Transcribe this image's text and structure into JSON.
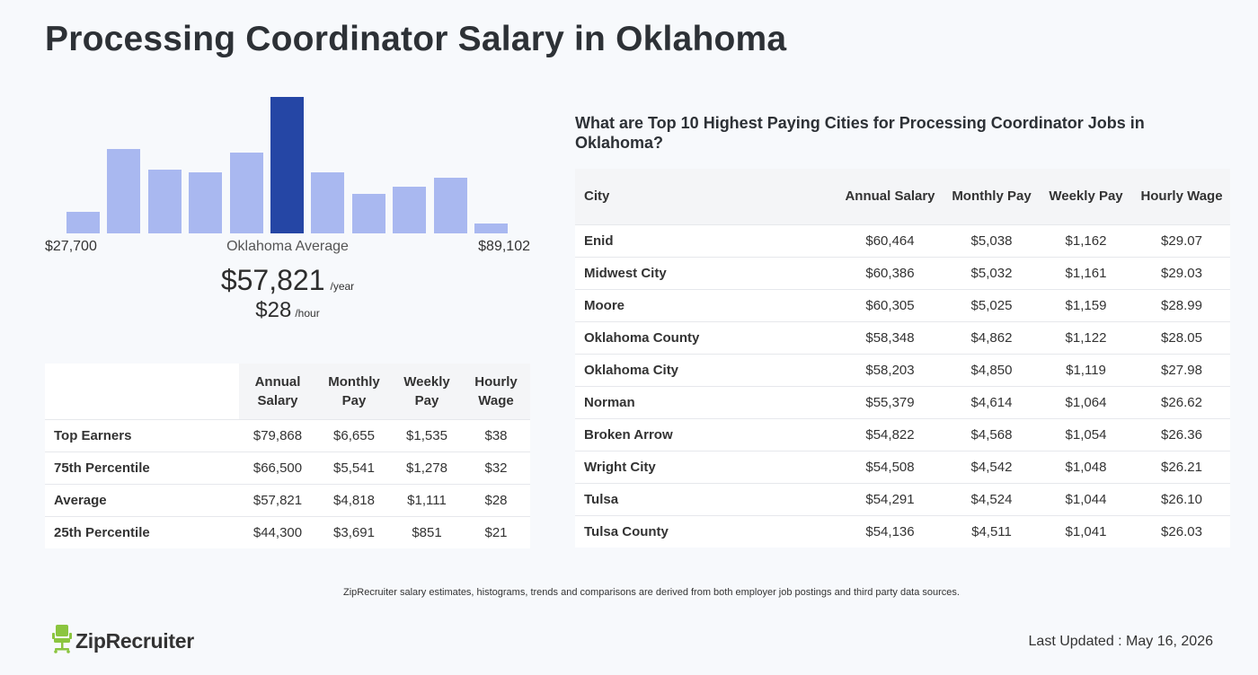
{
  "page": {
    "title": "Processing Coordinator Salary in Oklahoma"
  },
  "histogram": {
    "min_label": "$27,700",
    "max_label": "$89,102",
    "avg_label": "Oklahoma Average",
    "relative_heights": [
      0.16,
      0.62,
      0.47,
      0.45,
      0.59,
      1.0,
      0.45,
      0.29,
      0.34,
      0.41,
      0.07
    ],
    "highlight_index": 5,
    "colors": {
      "bar": "#a9b8f0",
      "highlight": "#2546a5"
    }
  },
  "average": {
    "annual": "$57,821",
    "annual_unit": "/year",
    "hourly": "$28",
    "hourly_unit": "/hour"
  },
  "percentile_table": {
    "headers": [
      "Annual Salary",
      "Monthly Pay",
      "Weekly Pay",
      "Hourly Wage"
    ],
    "rows": [
      {
        "label": "Top Earners",
        "annual": "$79,868",
        "monthly": "$6,655",
        "weekly": "$1,535",
        "hourly": "$38"
      },
      {
        "label": "75th Percentile",
        "annual": "$66,500",
        "monthly": "$5,541",
        "weekly": "$1,278",
        "hourly": "$32"
      },
      {
        "label": "Average",
        "annual": "$57,821",
        "monthly": "$4,818",
        "weekly": "$1,111",
        "hourly": "$28"
      },
      {
        "label": "25th Percentile",
        "annual": "$44,300",
        "monthly": "$3,691",
        "weekly": "$851",
        "hourly": "$21"
      }
    ]
  },
  "cities": {
    "heading": "What are Top 10 Highest Paying Cities for Processing Coordinator Jobs in Oklahoma?",
    "headers": [
      "City",
      "Annual Salary",
      "Monthly Pay",
      "Weekly Pay",
      "Hourly Wage"
    ],
    "rows": [
      {
        "city": "Enid",
        "annual": "$60,464",
        "monthly": "$5,038",
        "weekly": "$1,162",
        "hourly": "$29.07"
      },
      {
        "city": "Midwest City",
        "annual": "$60,386",
        "monthly": "$5,032",
        "weekly": "$1,161",
        "hourly": "$29.03"
      },
      {
        "city": "Moore",
        "annual": "$60,305",
        "monthly": "$5,025",
        "weekly": "$1,159",
        "hourly": "$28.99"
      },
      {
        "city": "Oklahoma County",
        "annual": "$58,348",
        "monthly": "$4,862",
        "weekly": "$1,122",
        "hourly": "$28.05"
      },
      {
        "city": "Oklahoma City",
        "annual": "$58,203",
        "monthly": "$4,850",
        "weekly": "$1,119",
        "hourly": "$27.98"
      },
      {
        "city": "Norman",
        "annual": "$55,379",
        "monthly": "$4,614",
        "weekly": "$1,064",
        "hourly": "$26.62"
      },
      {
        "city": "Broken Arrow",
        "annual": "$54,822",
        "monthly": "$4,568",
        "weekly": "$1,054",
        "hourly": "$26.36"
      },
      {
        "city": "Wright City",
        "annual": "$54,508",
        "monthly": "$4,542",
        "weekly": "$1,048",
        "hourly": "$26.21"
      },
      {
        "city": "Tulsa",
        "annual": "$54,291",
        "monthly": "$4,524",
        "weekly": "$1,044",
        "hourly": "$26.10"
      },
      {
        "city": "Tulsa County",
        "annual": "$54,136",
        "monthly": "$4,511",
        "weekly": "$1,041",
        "hourly": "$26.03"
      }
    ]
  },
  "footer": {
    "footnote": "ZipRecruiter salary estimates, histograms, trends and comparisons are derived from both employer job postings and third party data sources.",
    "logo_text": "ZipRecruiter",
    "logo_icon": "chair-icon",
    "logo_color": "#8bc53f",
    "last_updated": "Last Updated : May 16, 2026"
  }
}
